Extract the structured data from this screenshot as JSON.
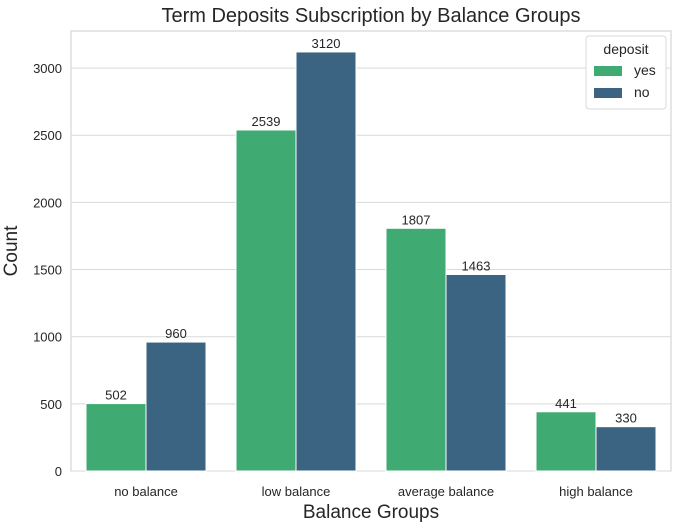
{
  "chart_data": {
    "type": "bar",
    "title": "Term Deposits Subscription by Balance Groups",
    "xlabel": "Balance Groups",
    "ylabel": "Count",
    "categories": [
      "no balance",
      "low balance",
      "average balance",
      "high balance"
    ],
    "series": [
      {
        "name": "yes",
        "values": [
          502,
          2539,
          1807,
          441
        ],
        "color": "#3fab72"
      },
      {
        "name": "no",
        "values": [
          960,
          3120,
          1463,
          330
        ],
        "color": "#3b6483"
      }
    ],
    "yticks": [
      0,
      500,
      1000,
      1500,
      2000,
      2500,
      3000
    ],
    "ylim": [
      0,
      3276
    ],
    "grid": "horizontal",
    "legend": {
      "title": "deposit",
      "placement": "top-right"
    }
  }
}
